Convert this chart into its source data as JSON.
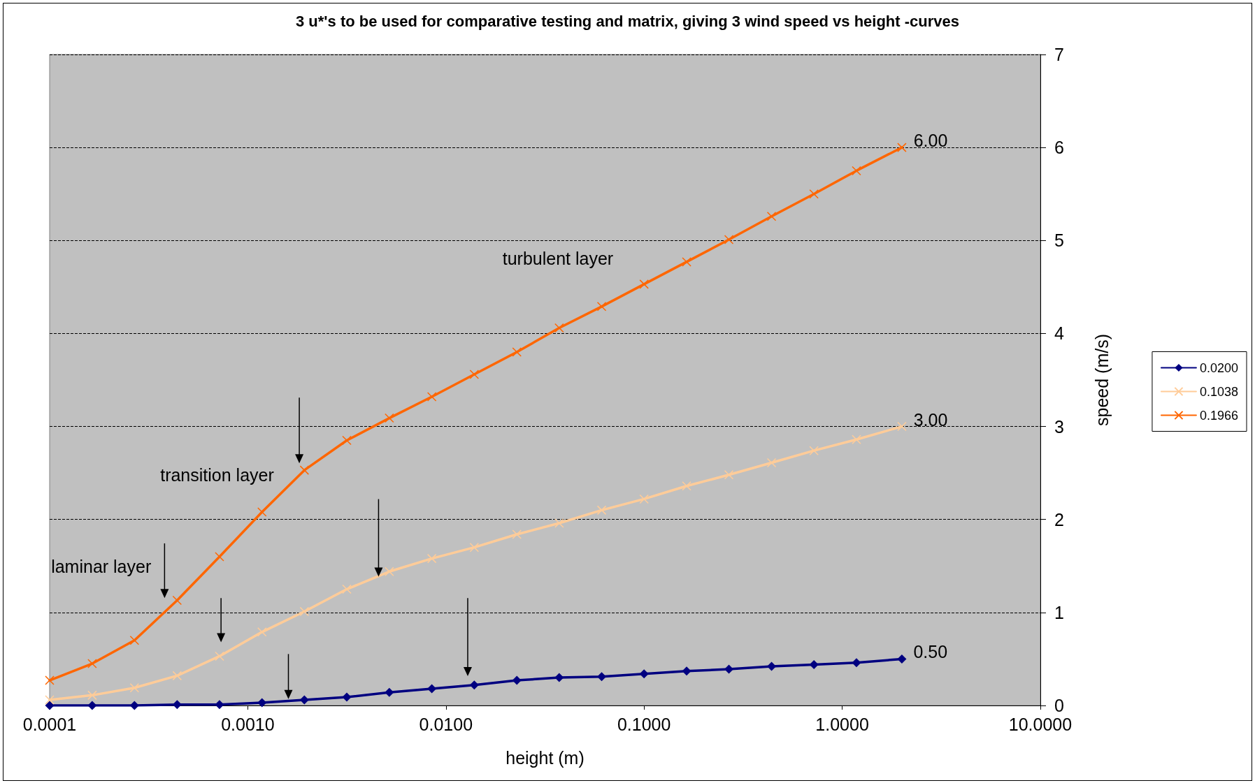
{
  "chart_data": {
    "type": "line",
    "title": "3 u*'s to be used for comparative testing and matrix, giving 3 wind speed vs height -curves",
    "xlabel": "height (m)",
    "ylabel": "speed (m/s)",
    "x": [
      0.0001,
      0.000164,
      0.000268,
      0.00044,
      0.00072,
      0.00118,
      0.00193,
      0.00316,
      0.00518,
      0.00849,
      0.0139,
      0.0228,
      0.0373,
      0.0611,
      0.1,
      0.164,
      0.268,
      0.44,
      0.72,
      1.18,
      2.0
    ],
    "series": [
      {
        "name": "0.0200",
        "color": "#000080",
        "marker": "diamond",
        "values": [
          0,
          0,
          0,
          0.01,
          0.01,
          0.03,
          0.06,
          0.09,
          0.14,
          0.18,
          0.22,
          0.27,
          0.3,
          0.31,
          0.34,
          0.37,
          0.39,
          0.42,
          0.44,
          0.46,
          0.5
        ],
        "value_labels": [
          null,
          null,
          null,
          null,
          null,
          null,
          null,
          null,
          null,
          null,
          null,
          null,
          null,
          null,
          null,
          null,
          null,
          null,
          null,
          null,
          "0.50"
        ]
      },
      {
        "name": "0.1038",
        "color": "#ffcc99",
        "marker": "cross",
        "values": [
          0.06,
          0.11,
          0.19,
          0.32,
          0.53,
          0.79,
          1.01,
          1.25,
          1.44,
          1.58,
          1.7,
          1.84,
          1.96,
          2.1,
          2.22,
          2.36,
          2.48,
          2.61,
          2.74,
          2.86,
          3.0
        ],
        "value_labels": [
          null,
          null,
          null,
          null,
          null,
          null,
          null,
          null,
          null,
          null,
          null,
          null,
          null,
          null,
          null,
          null,
          null,
          null,
          null,
          null,
          "3.00"
        ]
      },
      {
        "name": "0.1966",
        "color": "#ff6600",
        "marker": "cross",
        "values": [
          0.27,
          0.45,
          0.7,
          1.13,
          1.6,
          2.08,
          2.53,
          2.85,
          3.09,
          3.32,
          3.56,
          3.8,
          4.06,
          4.29,
          4.53,
          4.77,
          5.01,
          5.26,
          5.5,
          5.75,
          6.0
        ],
        "value_labels": [
          null,
          null,
          null,
          null,
          null,
          null,
          null,
          null,
          null,
          null,
          null,
          null,
          null,
          null,
          null,
          null,
          null,
          null,
          null,
          null,
          "6.00"
        ]
      }
    ],
    "log": "x",
    "xlim": [
      0.0001,
      10
    ],
    "xticks": [
      {
        "value": 0.0001,
        "label": "0.0001"
      },
      {
        "value": 0.001,
        "label": "0.0010"
      },
      {
        "value": 0.01,
        "label": "0.0100"
      },
      {
        "value": 0.1,
        "label": "0.1000"
      },
      {
        "value": 1,
        "label": "1.0000"
      },
      {
        "value": 10,
        "label": "10.0000"
      }
    ],
    "ylim": [
      0,
      7
    ],
    "yticks": [
      0,
      1,
      2,
      3,
      4,
      5,
      6,
      7
    ],
    "grid": "y",
    "legend": "right",
    "line_style": "solid",
    "annotations": [
      "turbulent layer",
      "transition layer",
      "laminar layer"
    ]
  }
}
